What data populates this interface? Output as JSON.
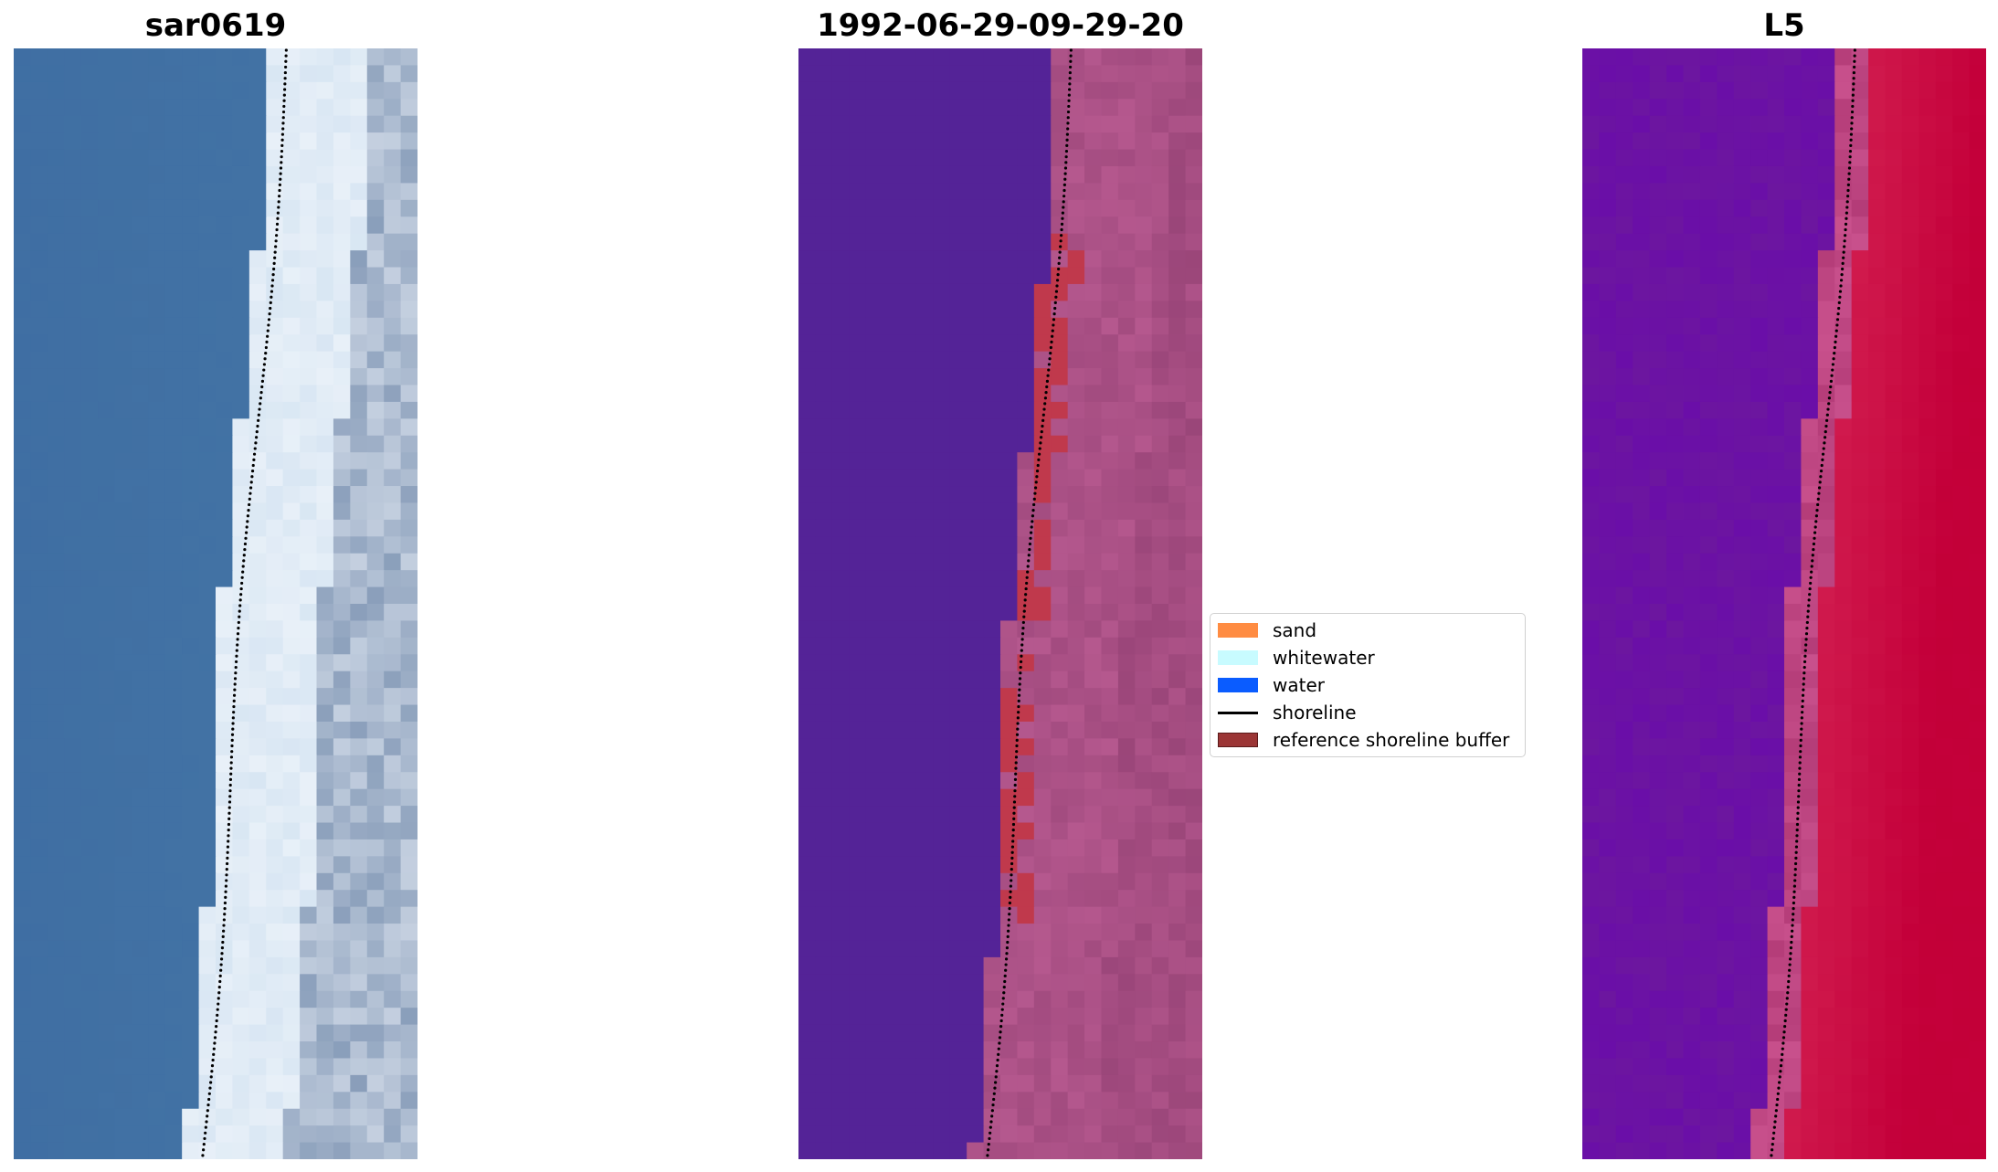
{
  "panels": [
    {
      "title": "sar0619",
      "style": "rgb"
    },
    {
      "title": "1992-06-29-09-29-20",
      "style": "classified"
    },
    {
      "title": "L5",
      "style": "index"
    }
  ],
  "legend": {
    "items": [
      {
        "label": "sand",
        "kind": "patch",
        "color": "#ff8c42"
      },
      {
        "label": "whitewater",
        "kind": "patch",
        "color": "#c8fbff"
      },
      {
        "label": "water",
        "kind": "patch",
        "color": "#0a5cff"
      },
      {
        "label": "shoreline",
        "kind": "line",
        "color": "#000000"
      },
      {
        "label": "reference shoreline buffer",
        "kind": "patch",
        "color": "#9b3535",
        "edge": "#5a1a1a"
      }
    ]
  },
  "colors": {
    "water_rgb": "#3f6ea3",
    "surf_rgb": "#e8f0f8",
    "classified_water": "#542397",
    "classified_land": "#b5588e",
    "buffer": "#c0394c",
    "index_low": "#6a0ea8",
    "index_high": "#c4003a"
  }
}
